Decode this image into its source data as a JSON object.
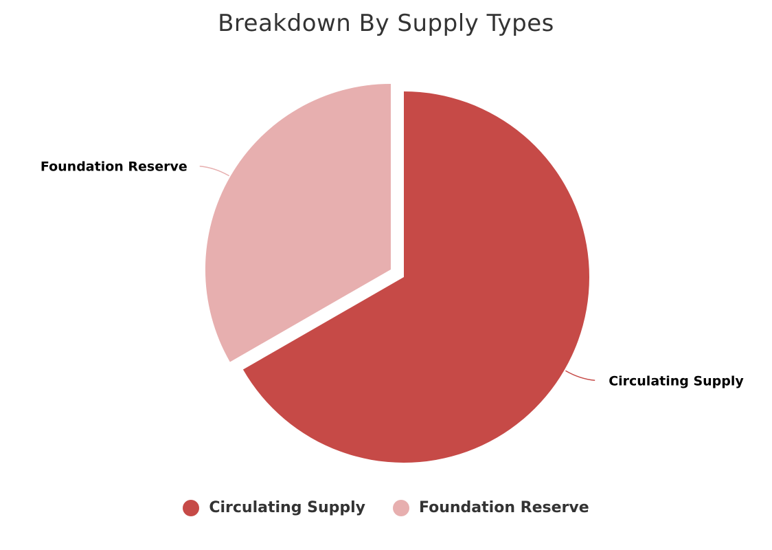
{
  "title": "Breakdown By Supply Types",
  "colors": {
    "circulating": "#c64a47",
    "foundation": "#e7afaf"
  },
  "chart_data": {
    "type": "pie",
    "title": "Breakdown By Supply Types",
    "slices": [
      {
        "label": "Circulating Supply",
        "value": 66.7,
        "color": "#c64a47",
        "exploded": false
      },
      {
        "label": "Foundation Reserve",
        "value": 33.3,
        "color": "#e7afaf",
        "exploded": true
      }
    ],
    "legend_position": "bottom-center"
  },
  "legend": {
    "items": [
      {
        "label": "Circulating Supply",
        "color": "#c64a47"
      },
      {
        "label": "Foundation Reserve",
        "color": "#e7afaf"
      }
    ]
  }
}
